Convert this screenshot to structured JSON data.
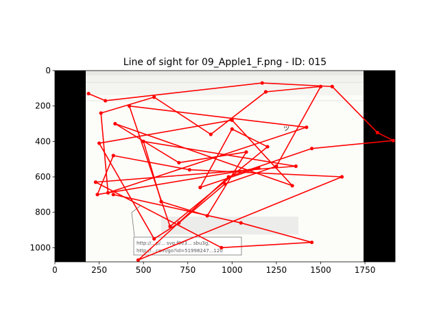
{
  "chart_data": {
    "type": "line",
    "title": "Line of sight for 09_Apple1_F.png - ID: 015",
    "xlim": [
      0,
      1920
    ],
    "ylim": [
      1080,
      0
    ],
    "y_inverted": true,
    "xticks": [
      0,
      250,
      500,
      750,
      1000,
      1250,
      1500,
      1750
    ],
    "yticks": [
      0,
      200,
      400,
      600,
      800,
      1000
    ],
    "grid": false,
    "background_image_extent_x": [
      175,
      1745
    ],
    "series_color": "#ff0000",
    "image_text": {
      "url_line1": "http://...p/... svg f9e3... sbu3g,",
      "url_line2": "http://...com/go?id=51998247...120",
      "heading_fragment": "ッ"
    },
    "gaze_points": [
      [
        190,
        130
      ],
      [
        285,
        170
      ],
      [
        1170,
        70
      ],
      [
        1565,
        90
      ],
      [
        1820,
        350
      ],
      [
        1910,
        395
      ],
      [
        1450,
        440
      ],
      [
        980,
        600
      ],
      [
        470,
        1070
      ],
      [
        1620,
        600
      ],
      [
        760,
        560
      ],
      [
        330,
        480
      ],
      [
        240,
        700
      ],
      [
        1150,
        550
      ],
      [
        820,
        660
      ],
      [
        1000,
        330
      ],
      [
        1200,
        430
      ],
      [
        650,
        880
      ],
      [
        420,
        200
      ],
      [
        1420,
        320
      ],
      [
        300,
        690
      ],
      [
        260,
        240
      ],
      [
        560,
        150
      ],
      [
        880,
        360
      ],
      [
        1190,
        120
      ],
      [
        1500,
        90
      ],
      [
        1250,
        540
      ],
      [
        960,
        640
      ],
      [
        700,
        860
      ],
      [
        560,
        950
      ],
      [
        250,
        410
      ],
      [
        1000,
        280
      ],
      [
        1340,
        650
      ],
      [
        340,
        300
      ],
      [
        700,
        520
      ],
      [
        1080,
        460
      ],
      [
        860,
        820
      ],
      [
        600,
        740
      ],
      [
        500,
        400
      ],
      [
        1360,
        540
      ],
      [
        230,
        630
      ],
      [
        940,
        1000
      ],
      [
        1450,
        970
      ],
      [
        1050,
        860
      ],
      [
        330,
        700
      ]
    ]
  }
}
